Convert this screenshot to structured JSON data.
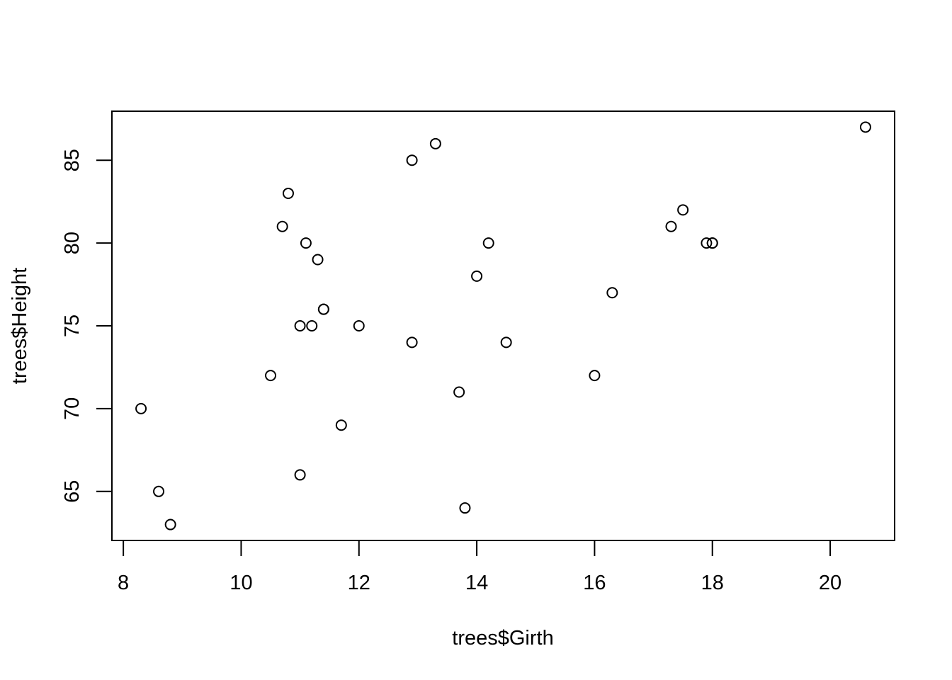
{
  "chart_data": {
    "type": "scatter",
    "title": "",
    "xlabel": "trees$Girth",
    "ylabel": "trees$Height",
    "xlim": [
      7.806,
      21.094
    ],
    "ylim": [
      62.04,
      87.96
    ],
    "xticks": [
      8,
      10,
      12,
      14,
      16,
      18,
      20
    ],
    "yticks": [
      65,
      70,
      75,
      80,
      85
    ],
    "xtick_labels": [
      "8",
      "10",
      "12",
      "14",
      "16",
      "18",
      "20"
    ],
    "ytick_labels": [
      "65",
      "70",
      "75",
      "80",
      "85"
    ],
    "grid": false,
    "legend": "none",
    "marker": "open-circle",
    "color": "#000000",
    "series": [
      {
        "points": [
          [
            8.3,
            70
          ],
          [
            8.6,
            65
          ],
          [
            8.8,
            63
          ],
          [
            10.5,
            72
          ],
          [
            10.7,
            81
          ],
          [
            10.8,
            83
          ],
          [
            11.0,
            66
          ],
          [
            11.0,
            75
          ],
          [
            11.1,
            80
          ],
          [
            11.2,
            75
          ],
          [
            11.3,
            79
          ],
          [
            11.4,
            76
          ],
          [
            11.4,
            76
          ],
          [
            11.7,
            69
          ],
          [
            12.0,
            75
          ],
          [
            12.9,
            74
          ],
          [
            12.9,
            85
          ],
          [
            13.3,
            86
          ],
          [
            13.7,
            71
          ],
          [
            13.8,
            64
          ],
          [
            14.0,
            78
          ],
          [
            14.2,
            80
          ],
          [
            14.5,
            74
          ],
          [
            16.0,
            72
          ],
          [
            16.3,
            77
          ],
          [
            17.3,
            81
          ],
          [
            17.5,
            82
          ],
          [
            17.9,
            80
          ],
          [
            18.0,
            80
          ],
          [
            18.0,
            80
          ],
          [
            20.6,
            87
          ]
        ]
      }
    ]
  }
}
